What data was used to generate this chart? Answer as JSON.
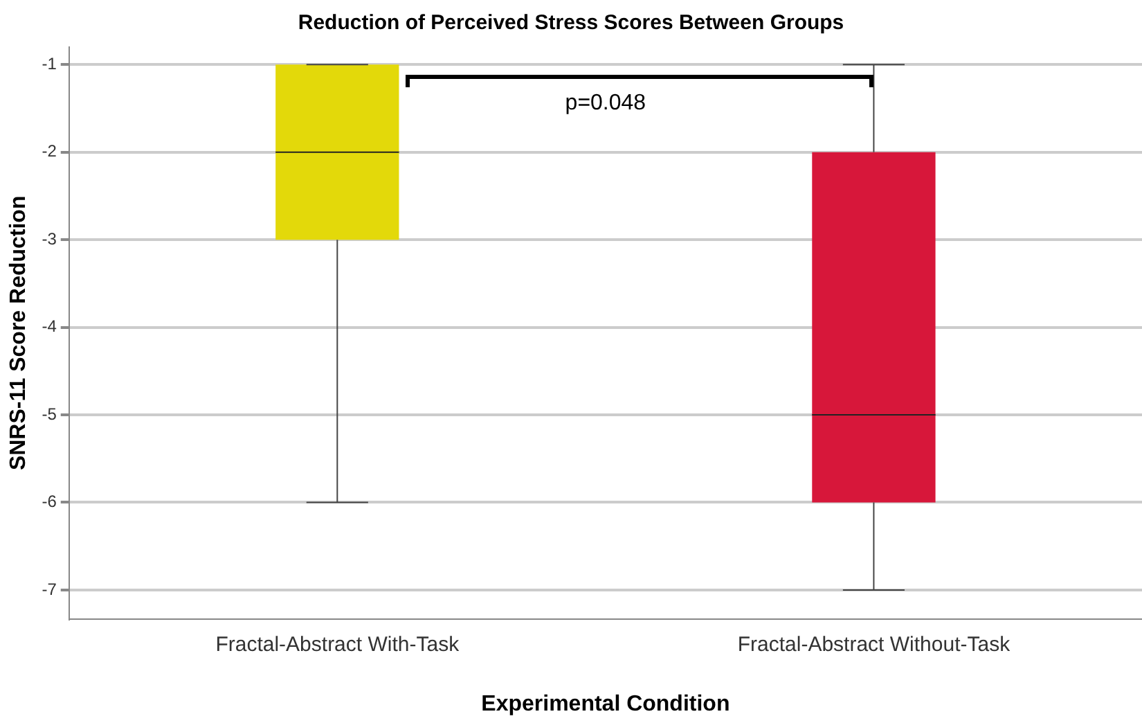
{
  "chart_data": {
    "type": "box",
    "title": "Reduction of Perceived Stress Scores Between Groups",
    "xlabel": "Experimental Condition",
    "ylabel": "SNRS-11 Score Reduction",
    "categories": [
      "Fractal-Abstract With-Task",
      "Fractal-Abstract Without-Task"
    ],
    "colors": [
      "#e3d90a",
      "#d7173a"
    ],
    "boxes": [
      {
        "low": -6,
        "q1": -3,
        "median": -2,
        "q3": -1,
        "high": -1
      },
      {
        "low": -7,
        "q1": -6,
        "median": -5,
        "q3": -2,
        "high": -1
      }
    ],
    "ylim": [
      -7.33,
      -0.8
    ],
    "yticks": [
      -7,
      -6,
      -5,
      -4,
      -3,
      -2,
      -1
    ],
    "grid": "y",
    "annotations": [
      "p=0.048"
    ]
  }
}
